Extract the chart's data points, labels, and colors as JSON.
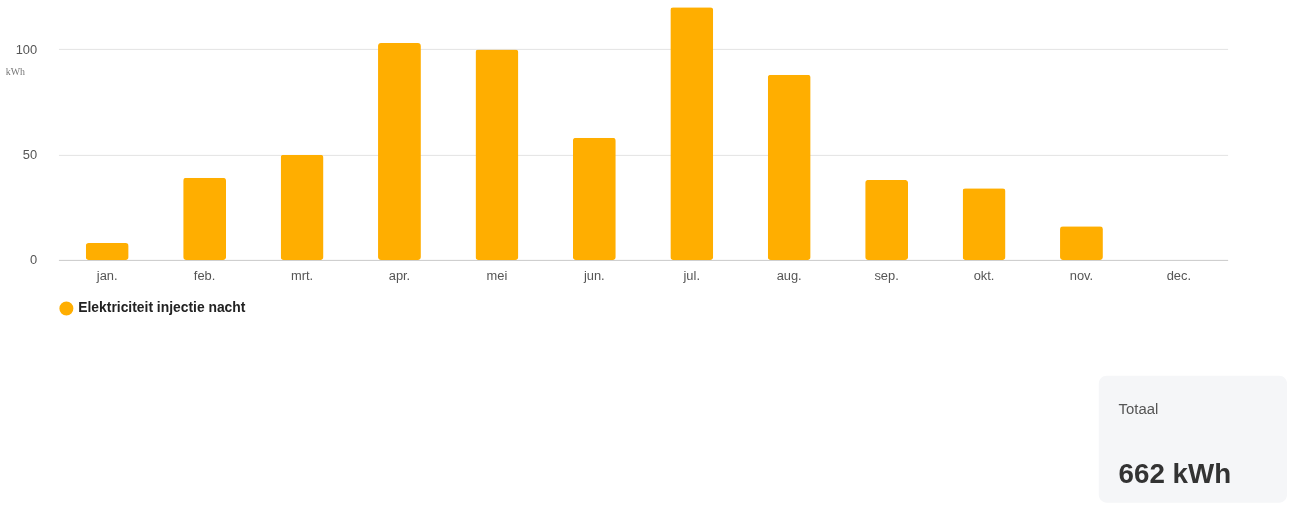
{
  "chart_data": {
    "type": "bar",
    "categories": [
      "jan.",
      "feb.",
      "mrt.",
      "apr.",
      "mei",
      "jun.",
      "jul.",
      "aug.",
      "sep.",
      "okt.",
      "nov.",
      "dec."
    ],
    "series": [
      {
        "name": "Elektriciteit injectie nacht",
        "color": "#ffae00",
        "values": [
          8,
          39,
          50,
          103,
          100,
          58,
          120,
          88,
          38,
          34,
          16,
          0
        ]
      }
    ],
    "ylabel": "kWh",
    "ylim": [
      0,
      120
    ],
    "yticks": [
      0,
      50,
      100
    ],
    "grid": "y",
    "legend": "bottom",
    "annotations": [
      "Totaal",
      "662 kWh"
    ]
  }
}
